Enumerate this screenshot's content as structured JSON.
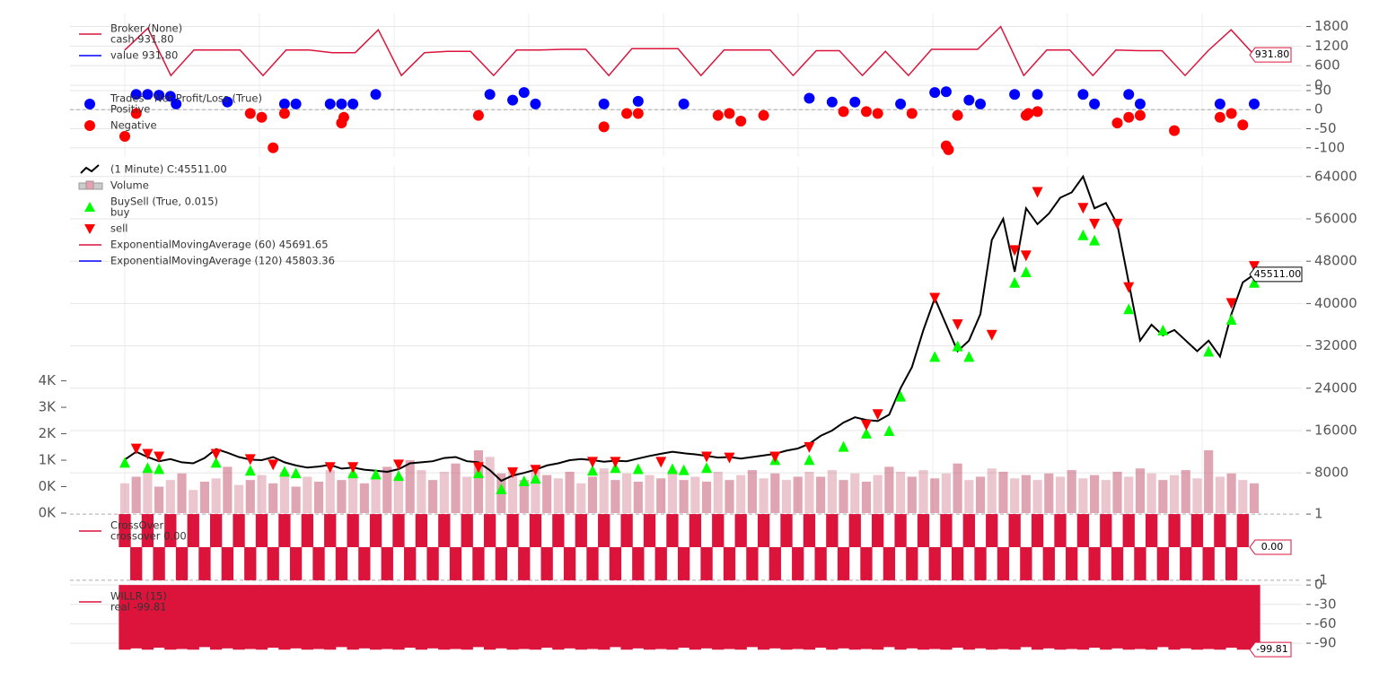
{
  "chart_data": [
    {
      "type": "line",
      "legend": [
        {
          "title": "Broker (None)",
          "label": "cash 931.80",
          "color": "#dc143c",
          "marker": "line"
        },
        {
          "label": "value 931.80",
          "color": "#0000ff",
          "marker": "line"
        }
      ],
      "last_label": "931.80",
      "ylim": [
        -80,
        2200
      ],
      "yticks": [
        0,
        600,
        1200,
        1800
      ],
      "grid": true,
      "series": [
        {
          "color": "#dc143c",
          "values": [
            1080,
            1750,
            300,
            1080,
            1080,
            1080,
            300,
            1080,
            1080,
            1000,
            1000,
            1700,
            300,
            1000,
            1040,
            1040,
            300,
            1080,
            1080,
            1100,
            1100,
            300,
            1120,
            1120,
            1120,
            300,
            1080,
            1080,
            1080,
            300,
            1060,
            1060,
            300,
            1040,
            300,
            1100,
            1100,
            1100,
            1800,
            300,
            1080,
            1080,
            300,
            1080,
            1060,
            1060,
            300,
            1060,
            1700,
            931.8
          ]
        }
      ]
    },
    {
      "type": "scatter",
      "legend": [
        {
          "title": "Trades - Net Profit/Loss (True)",
          "label": "Positive",
          "color": "#0000ff",
          "marker": "dot"
        },
        {
          "label": "Negative",
          "color": "#ff0000",
          "marker": "dot"
        }
      ],
      "ylim": [
        -124,
        57
      ],
      "yticks": [
        -100,
        -50,
        0,
        50
      ],
      "grid": true,
      "series": [
        {
          "color": "#0000ff",
          "x": [
            1,
            2,
            3,
            4,
            4.5,
            9,
            14,
            15,
            18,
            19,
            20,
            22,
            32,
            34,
            35,
            36,
            42,
            45,
            49,
            60,
            62,
            64,
            68,
            71,
            72,
            74,
            75,
            78,
            80,
            84,
            85,
            88,
            89,
            96,
            99
          ],
          "values": [
            40,
            40,
            38,
            35,
            15,
            20,
            15,
            15,
            15,
            15,
            15,
            40,
            40,
            25,
            45,
            15,
            15,
            22,
            15,
            30,
            20,
            20,
            15,
            45,
            47,
            25,
            15,
            40,
            40,
            40,
            15,
            40,
            15,
            15,
            15
          ]
        },
        {
          "color": "#ff0000",
          "x": [
            0,
            1,
            11,
            12,
            13,
            14,
            19,
            19.2,
            31,
            42,
            44,
            45,
            52,
            53,
            54,
            56,
            63,
            65,
            66,
            69,
            72,
            72.2,
            73,
            79,
            79.2,
            80,
            87,
            88,
            89,
            92,
            96,
            97,
            98
          ],
          "values": [
            -70,
            -10,
            -10,
            -20,
            -100,
            -10,
            -35,
            -20,
            -15,
            -45,
            -10,
            -10,
            -15,
            -10,
            -30,
            -15,
            -5,
            -5,
            -10,
            -10,
            -95,
            -105,
            -15,
            -15,
            -10,
            -5,
            -35,
            -20,
            -15,
            -55,
            -20,
            -10,
            -40
          ]
        }
      ]
    },
    {
      "type": "line",
      "legend": [
        {
          "label": " (1 Minute) C:45511.00",
          "color": "#000000",
          "marker": "zig"
        },
        {
          "label": "Volume",
          "color": "#e8a0b0",
          "marker": "box"
        },
        {
          "title": "BuySell (True, 0.015)",
          "label": "buy",
          "color": "#00ff00",
          "marker": "tri-up"
        },
        {
          "label": "sell",
          "color": "#ff0000",
          "marker": "tri-down"
        },
        {
          "label": "ExponentialMovingAverage (60) 45691.65",
          "color": "#dc143c",
          "marker": "line"
        },
        {
          "label": "ExponentialMovingAverage (120) 45803.36",
          "color": "#0000ff",
          "marker": "line"
        }
      ],
      "last_label": "45511.00",
      "ylim": [
        400,
        66000
      ],
      "yticks": [
        8000,
        16000,
        24000,
        32000,
        40000,
        48000,
        56000,
        64000
      ],
      "grid": true,
      "series": [
        {
          "color": "#000000",
          "values": [
            10500,
            12000,
            11000,
            10200,
            10600,
            10000,
            9800,
            10800,
            12500,
            11800,
            11000,
            10500,
            10400,
            11000,
            10000,
            9400,
            9000,
            9200,
            9500,
            8800,
            9000,
            8600,
            8400,
            8200,
            8700,
            9800,
            10000,
            10200,
            10800,
            11000,
            10200,
            10000,
            8500,
            6500,
            7500,
            8000,
            8600,
            9400,
            9800,
            10400,
            10600,
            10400,
            10100,
            10300,
            10200,
            10700,
            11200,
            11600,
            12000,
            11700,
            11500,
            11200,
            10900,
            11000,
            10700,
            11000,
            11300,
            11600,
            12200,
            12600,
            13500,
            15000,
            16000,
            17500,
            18500,
            18000,
            17800,
            19000,
            24000,
            28000,
            35000,
            41000,
            36000,
            31000,
            33000,
            38000,
            52000,
            56000,
            46000,
            58000,
            55000,
            57000,
            60000,
            61000,
            64000,
            58000,
            59000,
            55000,
            44000,
            33000,
            36000,
            34000,
            35000,
            33000,
            31000,
            33000,
            30000,
            38000,
            44000,
            45511
          ]
        }
      ],
      "volume": {
        "color": "#c75b75",
        "ylim": [
          0,
          10500
        ],
        "yticks": [
          {
            "value": 0,
            "label": "0K"
          },
          {
            "value": 800,
            "label": "0K"
          },
          {
            "value": 1600,
            "label": "1K"
          },
          {
            "value": 2400,
            "label": "2K"
          },
          {
            "value": 3200,
            "label": "3K"
          },
          {
            "value": 4000,
            "label": "4K"
          }
        ],
        "values": [
          900,
          1100,
          1300,
          800,
          1000,
          1200,
          700,
          950,
          1050,
          1400,
          850,
          1000,
          1150,
          900,
          1250,
          800,
          1100,
          950,
          1300,
          1000,
          1200,
          900,
          1050,
          1400,
          1100,
          1600,
          1300,
          1000,
          1250,
          1500,
          1100,
          1900,
          1700,
          1200,
          1400,
          1000,
          1300,
          1150,
          1050,
          1250,
          900,
          1100,
          1350,
          1000,
          1200,
          950,
          1150,
          1050,
          1300,
          1000,
          1100,
          950,
          1250,
          1000,
          1150,
          1300,
          1050,
          1200,
          1000,
          1100,
          1250,
          1100,
          1300,
          1000,
          1200,
          950,
          1150,
          1400,
          1250,
          1100,
          1300,
          1050,
          1200,
          1500,
          1000,
          1100,
          1350,
          1250,
          1050,
          1150,
          1000,
          1200,
          1100,
          1300,
          1050,
          1150,
          1000,
          1250,
          1100,
          1350,
          1200,
          1000,
          1150,
          1300,
          1050,
          1900,
          1100,
          1200,
          1000,
          900
        ]
      },
      "buy": {
        "color": "#00ff00",
        "x": [
          0,
          2,
          3,
          8,
          11,
          14,
          15,
          20,
          22,
          24,
          31,
          33,
          35,
          36,
          41,
          43,
          45,
          48,
          49,
          51,
          57,
          60,
          63,
          65,
          67,
          68,
          71,
          73,
          74,
          78,
          79,
          84,
          85,
          88,
          91,
          95,
          97,
          99
        ],
        "values": [
          10000,
          9000,
          8800,
          10000,
          8500,
          8300,
          8000,
          8000,
          7800,
          7500,
          8000,
          5000,
          6500,
          7000,
          8500,
          9000,
          8800,
          8800,
          8600,
          9000,
          10500,
          10500,
          13000,
          15500,
          16000,
          22500,
          30000,
          32000,
          30000,
          44000,
          46000,
          53000,
          52000,
          39000,
          35000,
          31000,
          37000,
          44000
        ]
      },
      "sell": {
        "color": "#ff0000",
        "x": [
          1,
          2,
          3,
          8,
          11,
          13,
          18,
          20,
          24,
          31,
          34,
          36,
          41,
          43,
          47,
          51,
          53,
          57,
          60,
          65,
          66,
          71,
          73,
          76,
          78,
          79,
          80,
          84,
          85,
          87,
          88,
          97,
          99
        ],
        "values": [
          12500,
          11500,
          11000,
          11500,
          10500,
          9500,
          9000,
          9000,
          9500,
          9000,
          8000,
          8500,
          10000,
          10000,
          10000,
          11000,
          10800,
          11000,
          12800,
          17000,
          19000,
          41000,
          36000,
          34000,
          50000,
          49000,
          61000,
          58000,
          55000,
          55000,
          43000,
          40000,
          47000
        ]
      }
    },
    {
      "type": "bar",
      "legend": [
        {
          "title": "CrossOver",
          "label": "crossover 0.00",
          "color": "#dc143c",
          "marker": "line"
        }
      ],
      "last_label": "0.00",
      "ylim": [
        -1.03,
        1.03
      ],
      "yticks": [
        -1,
        1
      ],
      "grid": false,
      "series": [
        {
          "color": "#dc143c",
          "values": [
            1,
            -1,
            1,
            -1,
            1,
            -1,
            1,
            -1,
            1,
            -1,
            1,
            -1,
            1,
            -1,
            1,
            -1,
            1,
            -1,
            1,
            -1,
            1,
            -1,
            1,
            -1,
            1,
            -1,
            1,
            -1,
            1,
            -1,
            1,
            -1,
            1,
            -1,
            1,
            -1,
            1,
            -1,
            1,
            -1,
            1,
            -1,
            1,
            -1,
            1,
            -1,
            1,
            -1,
            1,
            -1,
            1,
            -1,
            1,
            -1,
            1,
            -1,
            1,
            -1,
            1,
            -1,
            1,
            -1,
            1,
            -1,
            1,
            -1,
            1,
            -1,
            1,
            -1,
            1,
            -1,
            1,
            -1,
            1,
            -1,
            1,
            -1,
            1,
            -1,
            1,
            -1,
            1,
            -1,
            1,
            -1,
            1,
            -1,
            1,
            -1,
            1,
            -1,
            1,
            -1,
            1,
            -1,
            1,
            -1,
            1,
            0
          ]
        }
      ]
    },
    {
      "type": "bar",
      "legend": [
        {
          "title": "WILLR (15)",
          "label": "real -99.81",
          "color": "#dc143c",
          "marker": "line"
        }
      ],
      "last_label": "-99.81",
      "ylim": [
        -101,
        3
      ],
      "yticks": [
        -90,
        -60,
        -30,
        0
      ],
      "grid": true,
      "series": [
        {
          "color": "#dc143c",
          "values": [
            -100,
            -98,
            -100,
            -97,
            -100,
            -99,
            -100,
            -96,
            -100,
            -98,
            -100,
            -99,
            -100,
            -97,
            -100,
            -98,
            -100,
            -99,
            -100,
            -96,
            -100,
            -98,
            -100,
            -99,
            -100,
            -97,
            -100,
            -98,
            -100,
            -99,
            -100,
            -96,
            -100,
            -98,
            -100,
            -99,
            -100,
            -97,
            -100,
            -98,
            -100,
            -99,
            -100,
            -96,
            -100,
            -98,
            -100,
            -99,
            -100,
            -97,
            -100,
            -98,
            -100,
            -99,
            -100,
            -96,
            -100,
            -98,
            -100,
            -99,
            -100,
            -97,
            -100,
            -98,
            -100,
            -99,
            -100,
            -96,
            -100,
            -98,
            -100,
            -99,
            -100,
            -97,
            -100,
            -98,
            -100,
            -99,
            -100,
            -96,
            -100,
            -98,
            -100,
            -99,
            -100,
            -97,
            -100,
            -98,
            -100,
            -99,
            -100,
            -96,
            -100,
            -98,
            -100,
            -99,
            -100,
            -97,
            -100,
            -99.81
          ]
        }
      ]
    }
  ]
}
